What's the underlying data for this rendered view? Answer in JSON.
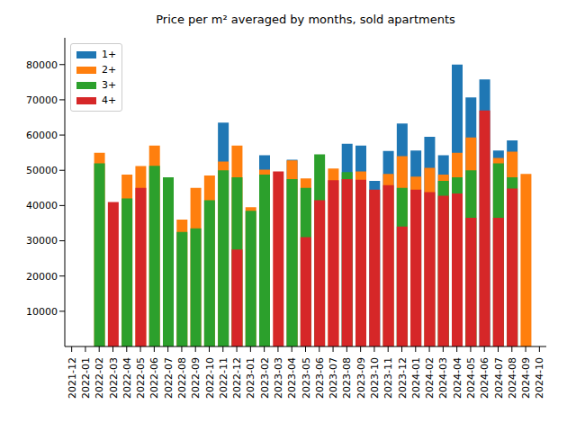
{
  "chart_data": {
    "type": "bar",
    "title": "Price per m² averaged by months, sold apartments",
    "categories": [
      "2021-12",
      "2022-01",
      "2022-02",
      "2022-03",
      "2022-04",
      "2022-05",
      "2022-06",
      "2022-07",
      "2022-08",
      "2022-09",
      "2022-10",
      "2022-11",
      "2022-12",
      "2023-01",
      "2023-02",
      "2023-03",
      "2023-04",
      "2023-05",
      "2023-06",
      "2023-07",
      "2023-08",
      "2023-09",
      "2023-10",
      "2023-11",
      "2023-12",
      "2024-01",
      "2024-02",
      "2024-03",
      "2024-04",
      "2024-05",
      "2024-06",
      "2024-07",
      "2024-08",
      "2024-09",
      "2024-10"
    ],
    "series": [
      {
        "name": "1+",
        "color": "#1f77b4",
        "values": [
          null,
          null,
          null,
          null,
          null,
          null,
          null,
          null,
          null,
          null,
          null,
          63500,
          null,
          null,
          54300,
          null,
          53000,
          null,
          null,
          null,
          57500,
          57000,
          47000,
          55500,
          63300,
          55600,
          59500,
          54300,
          80000,
          70700,
          75800,
          55600,
          58500,
          null,
          null
        ]
      },
      {
        "name": "2+",
        "color": "#ff7f0e",
        "values": [
          null,
          null,
          55000,
          null,
          48800,
          51200,
          57000,
          null,
          36000,
          45000,
          48500,
          52500,
          57000,
          39500,
          50200,
          null,
          52800,
          47700,
          null,
          50500,
          null,
          49700,
          null,
          49000,
          54000,
          48200,
          50700,
          48800,
          55000,
          59300,
          null,
          53500,
          55300,
          49000,
          null
        ]
      },
      {
        "name": "3+",
        "color": "#2ca02c",
        "values": [
          null,
          null,
          52000,
          null,
          42000,
          null,
          51300,
          48000,
          32500,
          33500,
          41500,
          50000,
          48000,
          38500,
          48800,
          null,
          47500,
          45000,
          54500,
          null,
          49500,
          null,
          null,
          null,
          45000,
          null,
          null,
          47000,
          48000,
          50000,
          null,
          52000,
          48000,
          null,
          null
        ]
      },
      {
        "name": "4+",
        "color": "#d62728",
        "values": [
          null,
          null,
          null,
          41000,
          null,
          45000,
          null,
          null,
          null,
          null,
          null,
          null,
          27500,
          null,
          null,
          49700,
          null,
          31000,
          41500,
          47200,
          47500,
          47300,
          44500,
          45800,
          34000,
          44500,
          43800,
          42800,
          43400,
          36500,
          67000,
          36500,
          44800,
          null,
          null
        ]
      }
    ],
    "ylim": [
      0,
      87600
    ],
    "yticks": [
      10000,
      20000,
      30000,
      40000,
      50000,
      60000,
      70000,
      80000
    ],
    "legend": "upper left"
  }
}
